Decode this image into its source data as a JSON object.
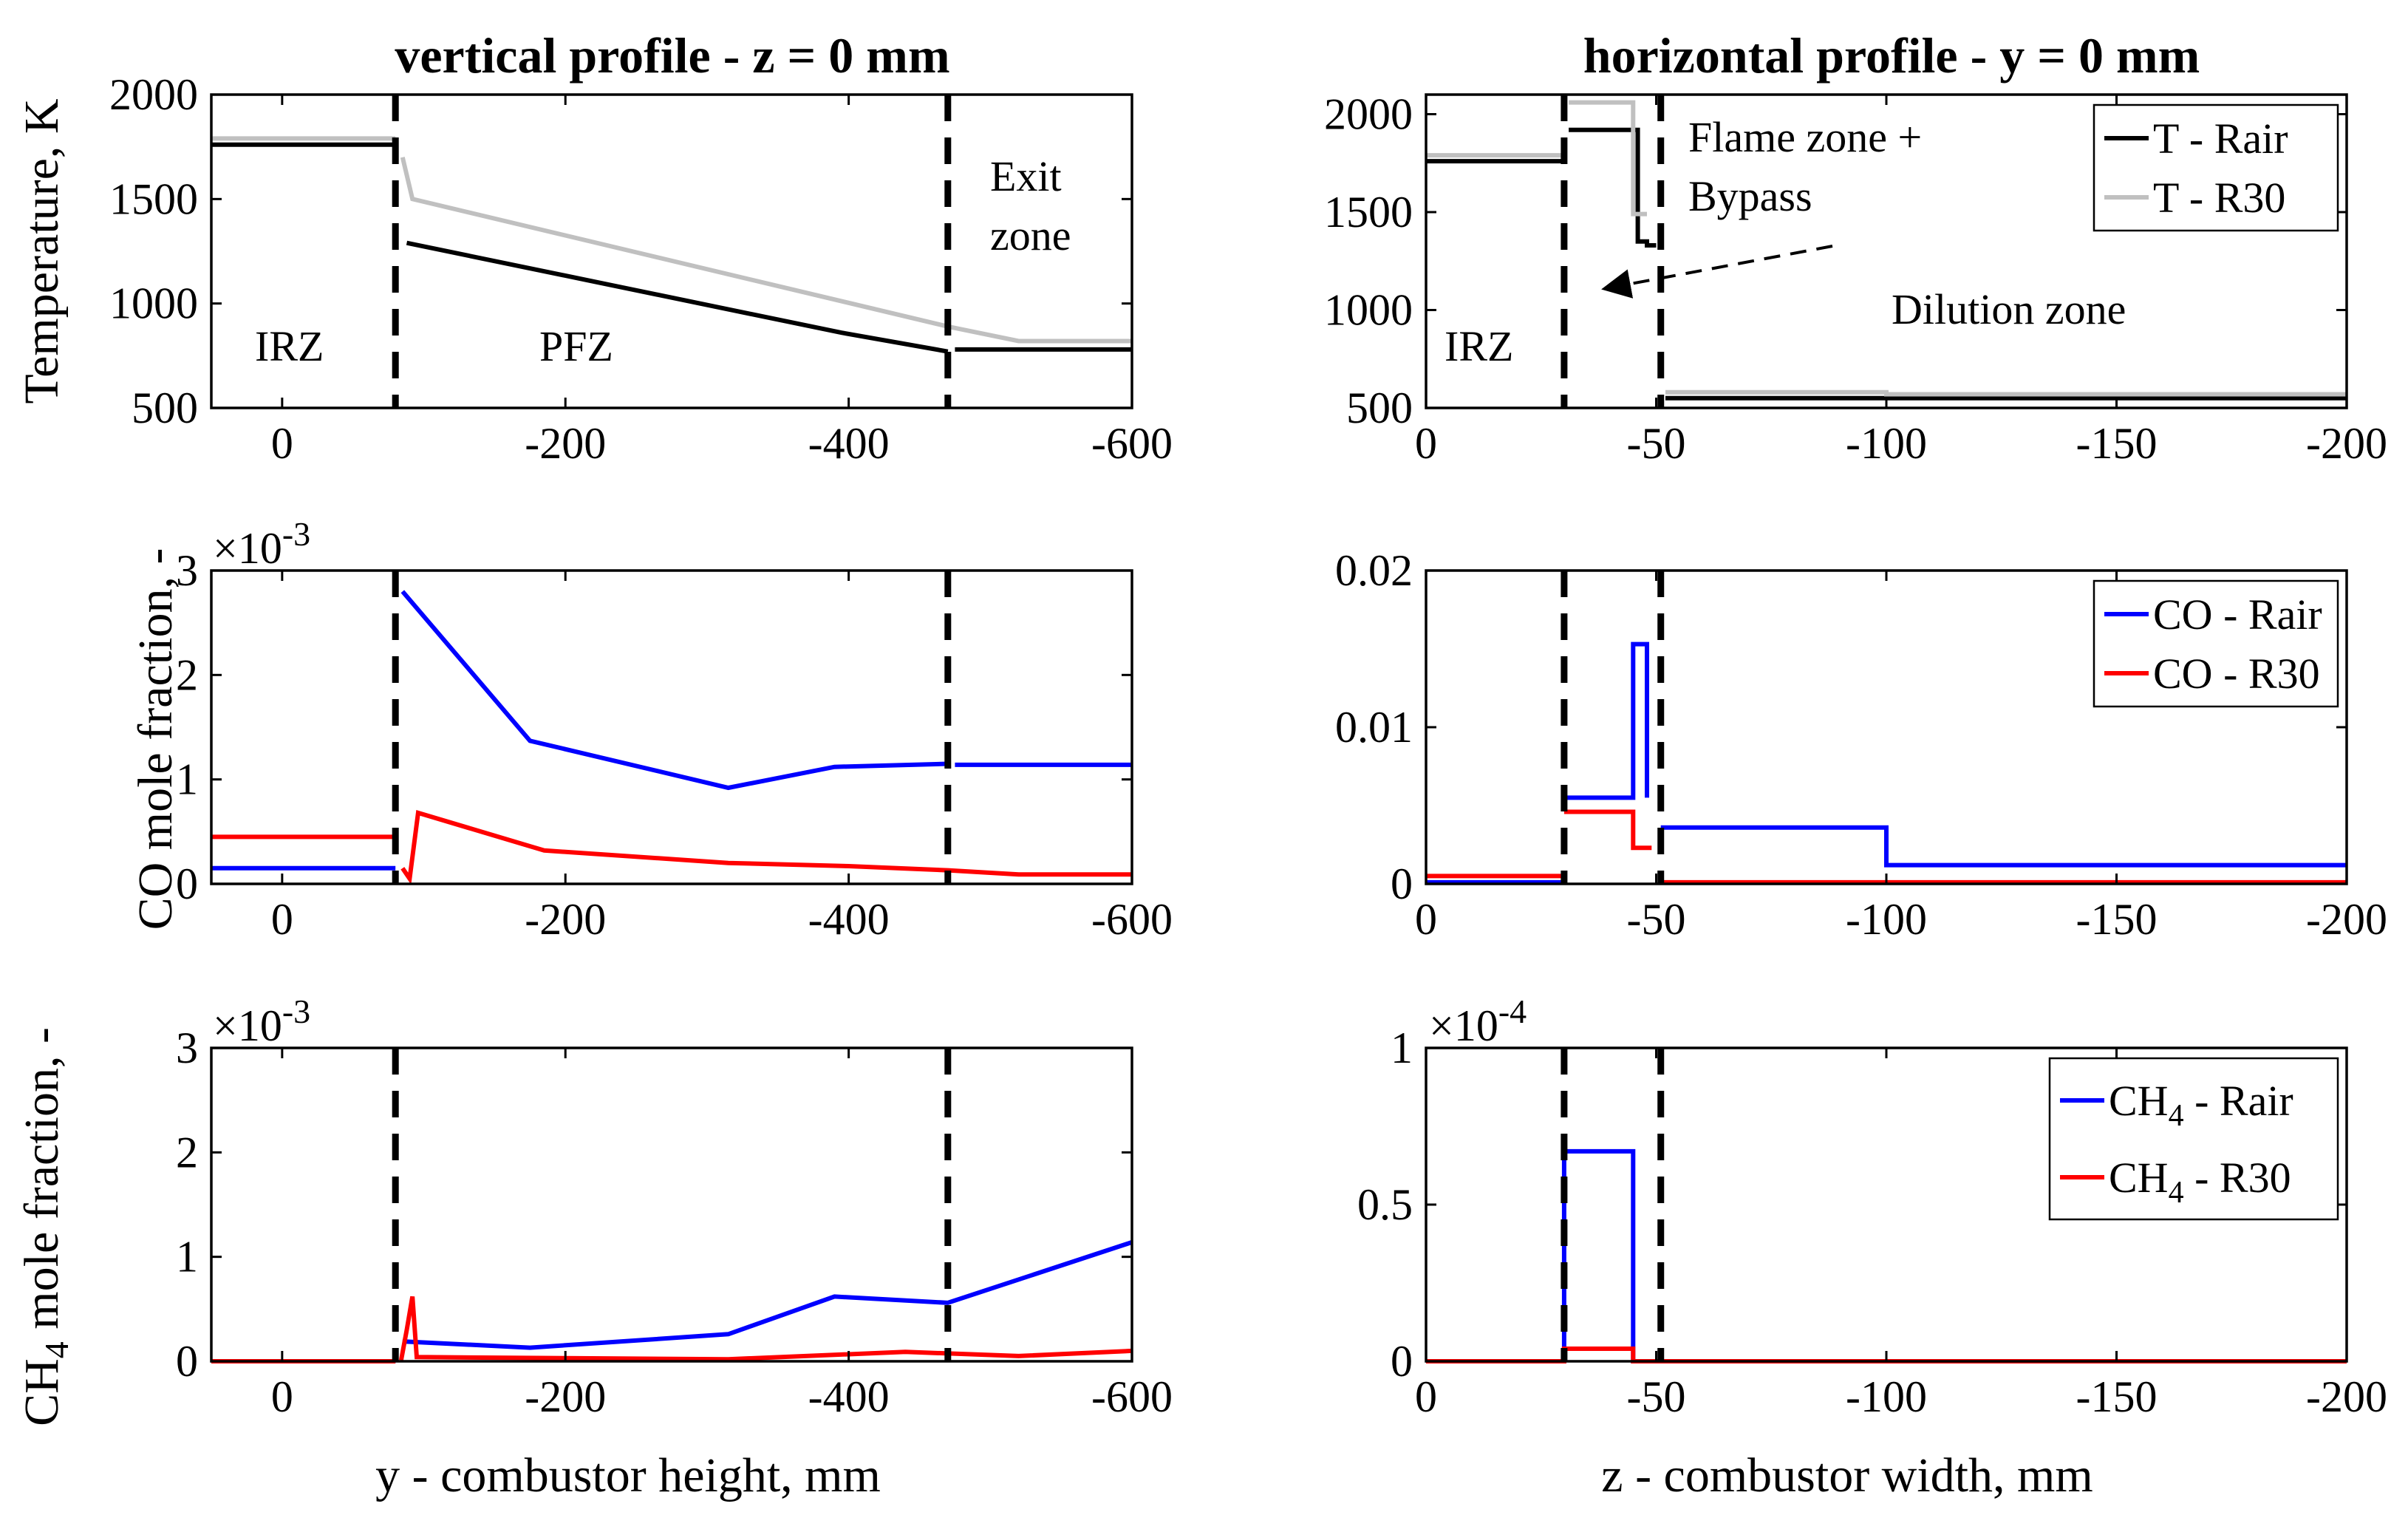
{
  "left_column_title": "vertical profile - z = 0 mm",
  "right_column_title": "horizontal profile - y = 0 mm",
  "y_axis_labels": {
    "temperature": "Temperature, K",
    "co": "CO mole fraction, -",
    "ch4_prefix": "CH",
    "ch4_sub": "4",
    "ch4_suffix": " mole fraction, -"
  },
  "x_axis_labels": {
    "left": "y - combustor height, mm",
    "right": "z - combustor width, mm"
  },
  "exponent_labels": {
    "left_co": "×10",
    "left_co_exp": "-3",
    "left_ch4": "×10",
    "left_ch4_exp": "-3",
    "right_ch4": "×10",
    "right_ch4_exp": "-4"
  },
  "annotations": {
    "irz_left": "IRZ",
    "pfz": "PFZ",
    "exit_line1": "Exit",
    "exit_line2": "zone",
    "irz_right": "IRZ",
    "flame_line1": "Flame zone +",
    "flame_line2": "Bypass",
    "dilution": "Dilution zone"
  },
  "colors": {
    "rair_T": "#000000",
    "r30_T": "#c0c0c0",
    "rair": "#0000ff",
    "r30": "#ff0000",
    "dashed": "#000000"
  },
  "chart_data": [
    {
      "id": "left_T",
      "type": "line",
      "xlim": [
        50,
        -600
      ],
      "ylim": [
        500,
        2000
      ],
      "xticks": [
        0,
        -200,
        -400,
        -600
      ],
      "xtick_labels": [
        "0",
        "-200",
        "-400",
        "-600"
      ],
      "yticks": [
        500,
        1000,
        1500,
        2000
      ],
      "ytick_labels": [
        "500",
        "1000",
        "1500",
        "2000"
      ],
      "vlines": [
        -80,
        -470
      ],
      "series": [
        {
          "name": "T - Rair",
          "color": "#000000",
          "segments": [
            {
              "x": [
                50,
                -80
              ],
              "y": [
                1760,
                1760
              ]
            },
            {
              "x": [
                -88,
                -395,
                -470
              ],
              "y": [
                1290,
                860,
                770
              ]
            },
            {
              "x": [
                -475,
                -600
              ],
              "y": [
                780,
                780
              ]
            }
          ]
        },
        {
          "name": "T - R30",
          "color": "#c0c0c0",
          "segments": [
            {
              "x": [
                50,
                -80
              ],
              "y": [
                1790,
                1790
              ]
            },
            {
              "x": [
                -85,
                -92,
                -470,
                -520,
                -600
              ],
              "y": [
                1700,
                1500,
                890,
                820,
                820
              ]
            }
          ]
        }
      ]
    },
    {
      "id": "right_T",
      "type": "line",
      "xlim": [
        0,
        -200
      ],
      "ylim": [
        500,
        2100
      ],
      "xticks": [
        0,
        -50,
        -100,
        -150,
        -200
      ],
      "xtick_labels": [
        "0",
        "-50",
        "-100",
        "-150",
        "-200"
      ],
      "yticks": [
        500,
        1000,
        1500,
        2000
      ],
      "ytick_labels": [
        "500",
        "1000",
        "1500",
        "2000"
      ],
      "vlines": [
        -30,
        -51
      ],
      "legend": {
        "position": "top-right",
        "entries": [
          "T - Rair",
          "T - R30"
        ]
      },
      "series": [
        {
          "name": "T - Rair",
          "color": "#000000",
          "segments": [
            {
              "x": [
                0,
                -30
              ],
              "y": [
                1760,
                1760
              ]
            },
            {
              "x": [
                -31,
                -46,
                -46,
                -48,
                -48,
                -50
              ],
              "y": [
                1920,
                1920,
                1350,
                1350,
                1330,
                1330
              ]
            },
            {
              "x": [
                -52,
                -200
              ],
              "y": [
                550,
                550
              ]
            }
          ]
        },
        {
          "name": "T - R30",
          "color": "#c0c0c0",
          "segments": [
            {
              "x": [
                0,
                -30
              ],
              "y": [
                1790,
                1790
              ]
            },
            {
              "x": [
                -31,
                -45,
                -45,
                -48
              ],
              "y": [
                2060,
                2060,
                1490,
                1490
              ]
            },
            {
              "x": [
                -52,
                -100,
                -100,
                -200
              ],
              "y": [
                580,
                580,
                570,
                570
              ]
            }
          ]
        }
      ]
    },
    {
      "id": "left_CO",
      "type": "line",
      "xlim": [
        50,
        -600
      ],
      "ylim": [
        0,
        3
      ],
      "xticks": [
        0,
        -200,
        -400,
        -600
      ],
      "xtick_labels": [
        "0",
        "-200",
        "-400",
        "-600"
      ],
      "yticks": [
        0,
        1,
        2,
        3
      ],
      "ytick_labels": [
        "0",
        "1",
        "2",
        "3"
      ],
      "scale_note": "x10^-3",
      "vlines": [
        -80,
        -470
      ],
      "series": [
        {
          "name": "CO - Rair",
          "color": "#0000ff",
          "segments": [
            {
              "x": [
                50,
                -80
              ],
              "y": [
                0.15,
                0.15
              ]
            },
            {
              "x": [
                -85,
                -175,
                -315,
                -390,
                -470
              ],
              "y": [
                2.8,
                1.37,
                0.92,
                1.12,
                1.15
              ]
            },
            {
              "x": [
                -475,
                -600
              ],
              "y": [
                1.14,
                1.14
              ]
            }
          ]
        },
        {
          "name": "CO - R30",
          "color": "#ff0000",
          "segments": [
            {
              "x": [
                50,
                -80
              ],
              "y": [
                0.45,
                0.45
              ]
            },
            {
              "x": [
                -85,
                -90,
                -96,
                -185,
                -315,
                -400,
                -470,
                -520,
                -600
              ],
              "y": [
                0.15,
                0.05,
                0.68,
                0.32,
                0.2,
                0.17,
                0.13,
                0.09,
                0.09
              ]
            }
          ]
        }
      ]
    },
    {
      "id": "right_CO",
      "type": "line",
      "xlim": [
        0,
        -200
      ],
      "ylim": [
        0,
        0.02
      ],
      "xticks": [
        0,
        -50,
        -100,
        -150,
        -200
      ],
      "xtick_labels": [
        "0",
        "-50",
        "-100",
        "-150",
        "-200"
      ],
      "yticks": [
        0,
        0.01,
        0.02
      ],
      "ytick_labels": [
        "0",
        "0.01",
        "0.02"
      ],
      "vlines": [
        -30,
        -51
      ],
      "legend": {
        "position": "top-right",
        "entries": [
          "CO - Rair",
          "CO - R30"
        ]
      },
      "series": [
        {
          "name": "CO - Rair",
          "color": "#0000ff",
          "segments": [
            {
              "x": [
                0,
                -30
              ],
              "y": [
                0.0001,
                0.0001
              ]
            },
            {
              "x": [
                -30,
                -45,
                -45,
                -48,
                -48
              ],
              "y": [
                0.0055,
                0.0055,
                0.0153,
                0.0153,
                0.0055
              ]
            },
            {
              "x": [
                -51,
                -100,
                -100,
                -200
              ],
              "y": [
                0.0036,
                0.0036,
                0.0012,
                0.0012
              ]
            }
          ]
        },
        {
          "name": "CO - R30",
          "color": "#ff0000",
          "segments": [
            {
              "x": [
                0,
                -30
              ],
              "y": [
                0.0005,
                0.0005
              ]
            },
            {
              "x": [
                -30,
                -45,
                -45,
                -49
              ],
              "y": [
                0.0046,
                0.0046,
                0.0023,
                0.0023
              ]
            },
            {
              "x": [
                -51,
                -200
              ],
              "y": [
                0.0001,
                0.0001
              ]
            }
          ]
        }
      ]
    },
    {
      "id": "left_CH4",
      "type": "line",
      "xlim": [
        50,
        -600
      ],
      "ylim": [
        0,
        3
      ],
      "xticks": [
        0,
        -200,
        -400,
        -600
      ],
      "xtick_labels": [
        "0",
        "-200",
        "-400",
        "-600"
      ],
      "yticks": [
        0,
        1,
        2,
        3
      ],
      "ytick_labels": [
        "0",
        "1",
        "2",
        "3"
      ],
      "scale_note": "x10^-3",
      "vlines": [
        -80,
        -470
      ],
      "series": [
        {
          "name": "CH4 - Rair",
          "color": "#0000ff",
          "segments": [
            {
              "x": [
                50,
                -80
              ],
              "y": [
                0.0,
                0.0
              ]
            },
            {
              "x": [
                -85,
                -175,
                -315,
                -390,
                -470,
                -600
              ],
              "y": [
                0.19,
                0.13,
                0.26,
                0.62,
                0.56,
                1.14
              ]
            }
          ]
        },
        {
          "name": "CH4 - R30",
          "color": "#ff0000",
          "segments": [
            {
              "x": [
                50,
                -80
              ],
              "y": [
                0.0,
                0.0
              ]
            },
            {
              "x": [
                -84,
                -88,
                -92,
                -95,
                -200,
                -315,
                -440,
                -520,
                -600
              ],
              "y": [
                0.01,
                0.3,
                0.62,
                0.04,
                0.03,
                0.02,
                0.09,
                0.05,
                0.1
              ]
            }
          ]
        }
      ]
    },
    {
      "id": "right_CH4",
      "type": "line",
      "xlim": [
        0,
        -200
      ],
      "ylim": [
        0,
        1
      ],
      "xticks": [
        0,
        -50,
        -100,
        -150,
        -200
      ],
      "xtick_labels": [
        "0",
        "-50",
        "-100",
        "-150",
        "-200"
      ],
      "yticks": [
        0,
        0.5,
        1
      ],
      "ytick_labels": [
        "0",
        "0.5",
        "1"
      ],
      "scale_note": "x10^-4",
      "vlines": [
        -30,
        -51
      ],
      "legend": {
        "position": "top-right",
        "entries": [
          "CH4 - Rair",
          "CH4 - R30"
        ]
      },
      "series": [
        {
          "name": "CH4 - Rair",
          "color": "#0000ff",
          "segments": [
            {
              "x": [
                0,
                -30,
                -30,
                -45,
                -45,
                -200
              ],
              "y": [
                0.0,
                0.0,
                0.67,
                0.67,
                0.0,
                0.0
              ]
            }
          ]
        },
        {
          "name": "CH4 - R30",
          "color": "#ff0000",
          "segments": [
            {
              "x": [
                0,
                -30,
                -30,
                -45,
                -45,
                -200
              ],
              "y": [
                0.0,
                0.0,
                0.04,
                0.04,
                0.0,
                0.0
              ]
            }
          ]
        }
      ]
    }
  ]
}
